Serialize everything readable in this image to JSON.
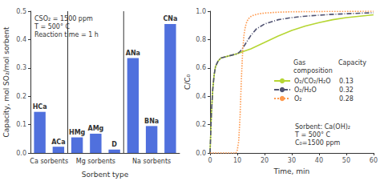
{
  "chart_data": [
    {
      "type": "bar",
      "categories": [
        "HCa",
        "ACa",
        "HMg",
        "AMg",
        "D",
        "ANa",
        "BNa",
        "CNa"
      ],
      "values": [
        0.145,
        0.022,
        0.055,
        0.068,
        0.012,
        0.335,
        0.095,
        0.455
      ],
      "groups": [
        {
          "name": "Ca sorbents",
          "categories": [
            "HCa",
            "ACa"
          ]
        },
        {
          "name": "Mg sorbents",
          "categories": [
            "HMg",
            "AMg",
            "D"
          ]
        },
        {
          "name": "Na sorbents",
          "categories": [
            "ANa",
            "BNa",
            "CNa"
          ]
        }
      ],
      "annotation": "CSO₂ = 1500 ppm\nT = 500° C\nReaction time = 1 h",
      "xlabel": "Sorbent type",
      "ylabel": "Capacity, mol SO₂/mol sorbent",
      "ylim": [
        0,
        0.5
      ],
      "yticks": [
        {
          "value": 0,
          "label": "0.0"
        },
        0.1,
        0.2,
        0.3,
        0.4,
        0.5
      ],
      "grid": false
    },
    {
      "type": "line",
      "xlabel": "Time, min",
      "ylabel": "C/C₀",
      "xlim": [
        0,
        60
      ],
      "xticks": [
        0,
        10,
        20,
        30,
        40,
        50,
        60
      ],
      "ylim": [
        0,
        1
      ],
      "yticks": [
        {
          "value": 0,
          "label": "0.0"
        },
        0.2,
        0.4,
        0.6,
        0.8,
        {
          "value": 1,
          "label": "1.0"
        }
      ],
      "annotation": "Sorbent: Ca(OH)₂\nT = 500° C\nC₀=1500 ppm",
      "legend": "right",
      "legend_columns": [
        "Gas\ncomposition",
        "Capacity"
      ],
      "grid": false,
      "series": [
        {
          "name": "O₂/CO₂/H₂O",
          "capacity": "0.13",
          "line_style": "solid",
          "x": [
            0,
            0.5,
            1,
            1.5,
            2,
            3,
            4,
            5,
            6,
            7,
            8,
            9,
            10,
            12,
            15,
            20,
            25,
            30,
            35,
            40,
            45,
            50,
            55,
            60
          ],
          "values": [
            0,
            0.28,
            0.45,
            0.55,
            0.61,
            0.65,
            0.67,
            0.675,
            0.68,
            0.685,
            0.69,
            0.695,
            0.7,
            0.715,
            0.735,
            0.78,
            0.825,
            0.865,
            0.895,
            0.92,
            0.94,
            0.955,
            0.965,
            0.975
          ]
        },
        {
          "name": "O₂/H₂O",
          "capacity": "0.32",
          "line_style": "dashdot",
          "x": [
            0,
            0.5,
            1,
            1.5,
            2,
            3,
            4,
            5,
            6,
            7,
            8,
            9,
            10,
            11,
            12,
            13,
            14,
            15,
            17,
            20,
            25,
            30,
            35,
            40,
            45,
            50,
            55,
            60
          ],
          "values": [
            0,
            0.28,
            0.45,
            0.55,
            0.61,
            0.65,
            0.67,
            0.675,
            0.68,
            0.685,
            0.69,
            0.695,
            0.7,
            0.715,
            0.74,
            0.77,
            0.8,
            0.83,
            0.875,
            0.91,
            0.94,
            0.955,
            0.965,
            0.972,
            0.978,
            0.982,
            0.986,
            0.989
          ]
        },
        {
          "name": "O₂",
          "capacity": "0.28",
          "line_style": "dotted",
          "x": [
            0,
            9.5,
            10,
            10.5,
            11,
            11.5,
            12,
            12.5,
            13,
            13.5,
            14,
            15,
            16,
            18,
            20,
            25,
            30,
            40,
            50,
            60
          ],
          "values": [
            0,
            0.0,
            0.02,
            0.08,
            0.25,
            0.52,
            0.73,
            0.84,
            0.895,
            0.925,
            0.945,
            0.963,
            0.972,
            0.982,
            0.987,
            0.993,
            0.996,
            0.998,
            0.999,
            1.0
          ]
        }
      ]
    }
  ]
}
